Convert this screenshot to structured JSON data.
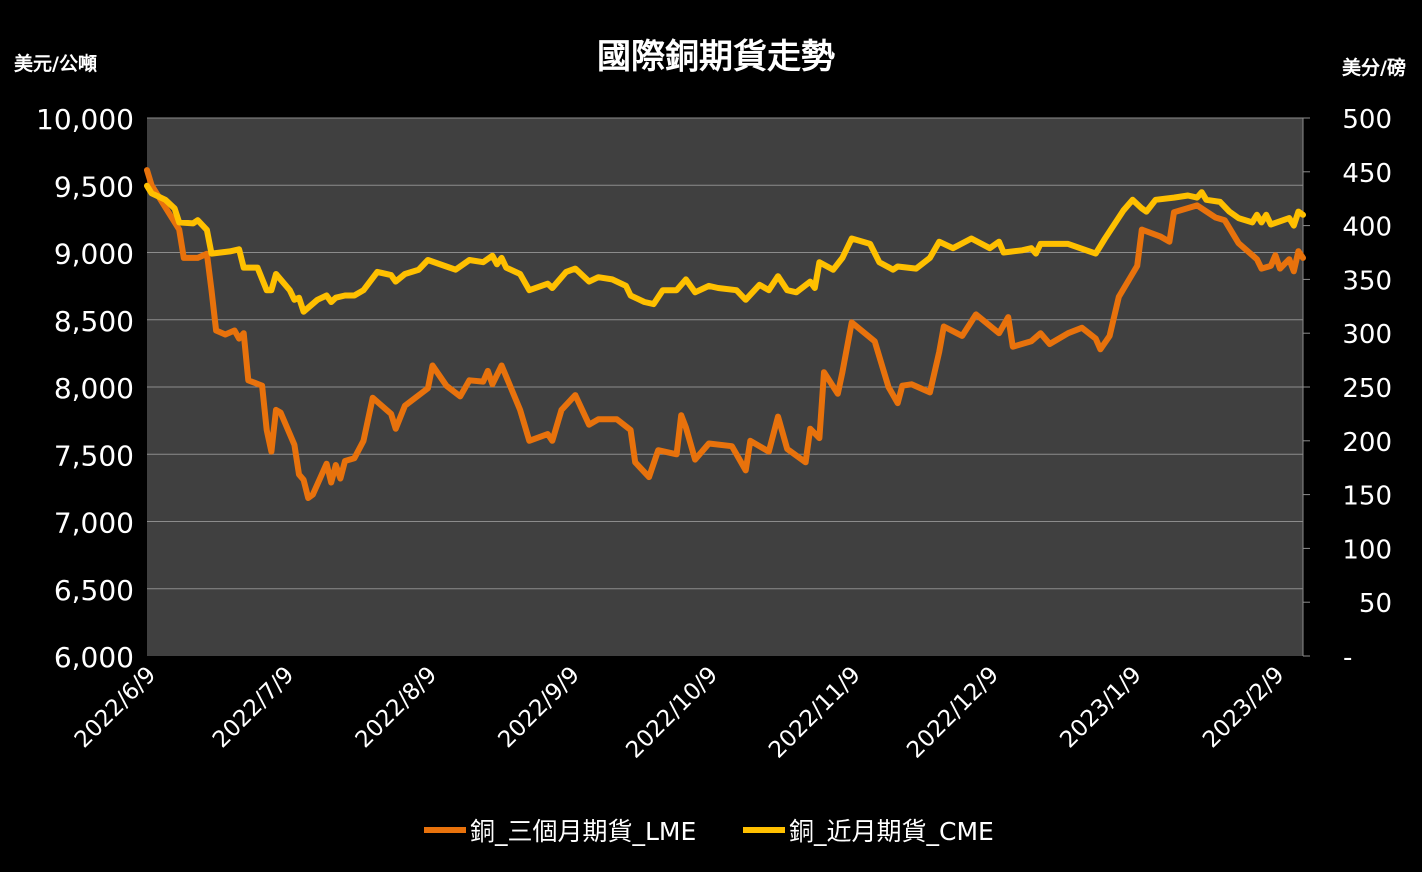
{
  "chart_data": {
    "type": "line",
    "title": "國際銅期貨走勢",
    "ylabel_left": "美元/公噸",
    "ylabel_right": "美分/磅",
    "ylim_left": [
      6000,
      10000
    ],
    "ylim_right": [
      0,
      500
    ],
    "yticks_left": [
      "6,000",
      "6,500",
      "7,000",
      "7,500",
      "8,000",
      "8,500",
      "9,000",
      "9,500",
      "10,000"
    ],
    "yticks_right": [
      "-",
      "50",
      "100",
      "150",
      "200",
      "250",
      "300",
      "350",
      "400",
      "450",
      "500"
    ],
    "xlim": [
      "2022/6/9",
      "2023/2/15"
    ],
    "xticks": [
      "2022/6/9",
      "2022/7/9",
      "2022/8/9",
      "2022/9/9",
      "2022/10/9",
      "2022/11/9",
      "2022/12/9",
      "2023/1/9",
      "2023/2/9"
    ],
    "grid": true,
    "legend_position": "bottom",
    "colors": {
      "background": "#000000",
      "plot_area": "#404040",
      "grid": "#8c8c8c"
    },
    "series": [
      {
        "name": "銅_三個月期貨_LME",
        "axis": "left",
        "color": "#E8720C",
        "points": [
          [
            "2022/6/9",
            9613
          ],
          [
            "2022/6/10",
            9500
          ],
          [
            "2022/6/14",
            9280
          ],
          [
            "2022/6/16",
            9170
          ],
          [
            "2022/6/17",
            8960
          ],
          [
            "2022/6/20",
            8960
          ],
          [
            "2022/6/22",
            8990
          ],
          [
            "2022/6/23",
            8720
          ],
          [
            "2022/6/24",
            8420
          ],
          [
            "2022/6/26",
            8390
          ],
          [
            "2022/6/28",
            8420
          ],
          [
            "2022/6/29",
            8360
          ],
          [
            "2022/6/30",
            8400
          ],
          [
            "2022/7/1",
            8050
          ],
          [
            "2022/7/4",
            8010
          ],
          [
            "2022/7/5",
            7680
          ],
          [
            "2022/7/6",
            7520
          ],
          [
            "2022/7/7",
            7830
          ],
          [
            "2022/7/8",
            7810
          ],
          [
            "2022/7/11",
            7570
          ],
          [
            "2022/7/12",
            7350
          ],
          [
            "2022/7/13",
            7310
          ],
          [
            "2022/7/14",
            7175
          ],
          [
            "2022/7/15",
            7200
          ],
          [
            "2022/7/18",
            7430
          ],
          [
            "2022/7/19",
            7290
          ],
          [
            "2022/7/20",
            7420
          ],
          [
            "2022/7/21",
            7320
          ],
          [
            "2022/7/22",
            7450
          ],
          [
            "2022/7/24",
            7470
          ],
          [
            "2022/7/26",
            7600
          ],
          [
            "2022/7/28",
            7920
          ],
          [
            "2022/8/1",
            7800
          ],
          [
            "2022/8/2",
            7690
          ],
          [
            "2022/8/4",
            7860
          ],
          [
            "2022/8/9",
            7990
          ],
          [
            "2022/8/10",
            8160
          ],
          [
            "2022/8/13",
            8010
          ],
          [
            "2022/8/16",
            7930
          ],
          [
            "2022/8/18",
            8050
          ],
          [
            "2022/8/21",
            8040
          ],
          [
            "2022/8/22",
            8120
          ],
          [
            "2022/8/23",
            8020
          ],
          [
            "2022/8/25",
            8160
          ],
          [
            "2022/8/29",
            7830
          ],
          [
            "2022/8/31",
            7600
          ],
          [
            "2022/9/4",
            7650
          ],
          [
            "2022/9/5",
            7600
          ],
          [
            "2022/9/7",
            7830
          ],
          [
            "2022/9/10",
            7940
          ],
          [
            "2022/9/13",
            7720
          ],
          [
            "2022/9/15",
            7760
          ],
          [
            "2022/9/19",
            7760
          ],
          [
            "2022/9/22",
            7680
          ],
          [
            "2022/9/23",
            7440
          ],
          [
            "2022/9/26",
            7330
          ],
          [
            "2022/9/28",
            7530
          ],
          [
            "2022/10/2",
            7500
          ],
          [
            "2022/10/3",
            7790
          ],
          [
            "2022/10/4",
            7700
          ],
          [
            "2022/10/6",
            7460
          ],
          [
            "2022/10/9",
            7580
          ],
          [
            "2022/10/14",
            7560
          ],
          [
            "2022/10/17",
            7380
          ],
          [
            "2022/10/18",
            7600
          ],
          [
            "2022/10/22",
            7520
          ],
          [
            "2022/10/24",
            7780
          ],
          [
            "2022/10/26",
            7540
          ],
          [
            "2022/10/30",
            7440
          ],
          [
            "2022/10/31",
            7690
          ],
          [
            "2022/11/2",
            7620
          ],
          [
            "2022/11/3",
            8110
          ],
          [
            "2022/11/6",
            7950
          ],
          [
            "2022/11/7",
            8110
          ],
          [
            "2022/11/9",
            8480
          ],
          [
            "2022/11/14",
            8340
          ],
          [
            "2022/11/17",
            8000
          ],
          [
            "2022/11/19",
            7880
          ],
          [
            "2022/11/20",
            8010
          ],
          [
            "2022/11/22",
            8020
          ],
          [
            "2022/11/26",
            7960
          ],
          [
            "2022/11/28",
            8260
          ],
          [
            "2022/11/29",
            8450
          ],
          [
            "2022/12/3",
            8380
          ],
          [
            "2022/12/6",
            8540
          ],
          [
            "2022/12/11",
            8400
          ],
          [
            "2022/12/13",
            8520
          ],
          [
            "2022/12/14",
            8300
          ],
          [
            "2022/12/18",
            8340
          ],
          [
            "2022/12/20",
            8400
          ],
          [
            "2022/12/22",
            8320
          ],
          [
            "2022/12/26",
            8400
          ],
          [
            "2022/12/29",
            8440
          ],
          [
            "2023/1/1",
            8360
          ],
          [
            "2023/1/2",
            8280
          ],
          [
            "2023/1/4",
            8380
          ],
          [
            "2023/1/6",
            8670
          ],
          [
            "2023/1/10",
            8900
          ],
          [
            "2023/1/11",
            9170
          ],
          [
            "2023/1/15",
            9120
          ],
          [
            "2023/1/17",
            9080
          ],
          [
            "2023/1/18",
            9300
          ],
          [
            "2023/1/23",
            9350
          ],
          [
            "2023/1/27",
            9260
          ],
          [
            "2023/1/29",
            9240
          ],
          [
            "2023/2/1",
            9070
          ],
          [
            "2023/2/5",
            8950
          ],
          [
            "2023/2/6",
            8880
          ],
          [
            "2023/2/8",
            8900
          ],
          [
            "2023/2/9",
            8980
          ],
          [
            "2023/2/10",
            8880
          ],
          [
            "2023/2/12",
            8950
          ],
          [
            "2023/2/13",
            8860
          ],
          [
            "2023/2/14",
            9010
          ],
          [
            "2023/2/15",
            8960
          ]
        ]
      },
      {
        "name": "銅_近月期貨_CME",
        "axis": "right",
        "color": "#FFC000",
        "points": [
          [
            "2022/6/9",
            437
          ],
          [
            "2022/6/10",
            430
          ],
          [
            "2022/6/13",
            424
          ],
          [
            "2022/6/15",
            416
          ],
          [
            "2022/6/16",
            403
          ],
          [
            "2022/6/19",
            402
          ],
          [
            "2022/6/20",
            405
          ],
          [
            "2022/6/22",
            396
          ],
          [
            "2022/6/23",
            374
          ],
          [
            "2022/6/27",
            376
          ],
          [
            "2022/6/29",
            378
          ],
          [
            "2022/6/30",
            361
          ],
          [
            "2022/7/3",
            361
          ],
          [
            "2022/7/5",
            340
          ],
          [
            "2022/7/6",
            340
          ],
          [
            "2022/7/7",
            355
          ],
          [
            "2022/7/10",
            340
          ],
          [
            "2022/7/11",
            331
          ],
          [
            "2022/7/12",
            333
          ],
          [
            "2022/7/13",
            320
          ],
          [
            "2022/7/16",
            331
          ],
          [
            "2022/7/18",
            335
          ],
          [
            "2022/7/19",
            329
          ],
          [
            "2022/7/20",
            333
          ],
          [
            "2022/7/22",
            335
          ],
          [
            "2022/7/24",
            335
          ],
          [
            "2022/7/26",
            340
          ],
          [
            "2022/7/29",
            357
          ],
          [
            "2022/8/1",
            354
          ],
          [
            "2022/8/2",
            348
          ],
          [
            "2022/8/4",
            355
          ],
          [
            "2022/8/7",
            359
          ],
          [
            "2022/8/9",
            368
          ],
          [
            "2022/8/13",
            362
          ],
          [
            "2022/8/15",
            359
          ],
          [
            "2022/8/18",
            368
          ],
          [
            "2022/8/21",
            366
          ],
          [
            "2022/8/23",
            372
          ],
          [
            "2022/8/24",
            364
          ],
          [
            "2022/8/25",
            370
          ],
          [
            "2022/8/26",
            361
          ],
          [
            "2022/8/29",
            355
          ],
          [
            "2022/8/31",
            340
          ],
          [
            "2022/9/4",
            346
          ],
          [
            "2022/9/5",
            342
          ],
          [
            "2022/9/8",
            357
          ],
          [
            "2022/9/10",
            360
          ],
          [
            "2022/9/13",
            348
          ],
          [
            "2022/9/15",
            352
          ],
          [
            "2022/9/18",
            350
          ],
          [
            "2022/9/21",
            344
          ],
          [
            "2022/9/22",
            335
          ],
          [
            "2022/9/25",
            329
          ],
          [
            "2022/9/27",
            327
          ],
          [
            "2022/9/29",
            340
          ],
          [
            "2022/10/2",
            340
          ],
          [
            "2022/10/4",
            350
          ],
          [
            "2022/10/6",
            338
          ],
          [
            "2022/10/9",
            344
          ],
          [
            "2022/10/11",
            342
          ],
          [
            "2022/10/15",
            340
          ],
          [
            "2022/10/17",
            331
          ],
          [
            "2022/10/20",
            345
          ],
          [
            "2022/10/22",
            340
          ],
          [
            "2022/10/24",
            353
          ],
          [
            "2022/10/26",
            340
          ],
          [
            "2022/10/28",
            338
          ],
          [
            "2022/10/31",
            348
          ],
          [
            "2022/11/1",
            342
          ],
          [
            "2022/11/2",
            366
          ],
          [
            "2022/11/5",
            359
          ],
          [
            "2022/11/7",
            370
          ],
          [
            "2022/11/9",
            388
          ],
          [
            "2022/11/13",
            383
          ],
          [
            "2022/11/15",
            366
          ],
          [
            "2022/11/18",
            359
          ],
          [
            "2022/11/19",
            362
          ],
          [
            "2022/11/23",
            360
          ],
          [
            "2022/11/26",
            370
          ],
          [
            "2022/11/28",
            385
          ],
          [
            "2022/12/1",
            379
          ],
          [
            "2022/12/5",
            388
          ],
          [
            "2022/12/9",
            379
          ],
          [
            "2022/12/11",
            385
          ],
          [
            "2022/12/12",
            375
          ],
          [
            "2022/12/16",
            377
          ],
          [
            "2022/12/18",
            379
          ],
          [
            "2022/12/19",
            374
          ],
          [
            "2022/12/20",
            383
          ],
          [
            "2022/12/26",
            383
          ],
          [
            "2023/1/1",
            374
          ],
          [
            "2023/1/3",
            388
          ],
          [
            "2023/1/7",
            414
          ],
          [
            "2023/1/9",
            424
          ],
          [
            "2023/1/11",
            416
          ],
          [
            "2023/1/12",
            413
          ],
          [
            "2023/1/14",
            424
          ],
          [
            "2023/1/18",
            426
          ],
          [
            "2023/1/21",
            428
          ],
          [
            "2023/1/23",
            426
          ],
          [
            "2023/1/24",
            431
          ],
          [
            "2023/1/25",
            424
          ],
          [
            "2023/1/28",
            422
          ],
          [
            "2023/1/30",
            413
          ],
          [
            "2023/2/1",
            407
          ],
          [
            "2023/2/4",
            403
          ],
          [
            "2023/2/5",
            410
          ],
          [
            "2023/2/6",
            403
          ],
          [
            "2023/2/7",
            410
          ],
          [
            "2023/2/8",
            401
          ],
          [
            "2023/2/12",
            407
          ],
          [
            "2023/2/13",
            400
          ],
          [
            "2023/2/14",
            413
          ],
          [
            "2023/2/15",
            410
          ]
        ]
      }
    ]
  }
}
